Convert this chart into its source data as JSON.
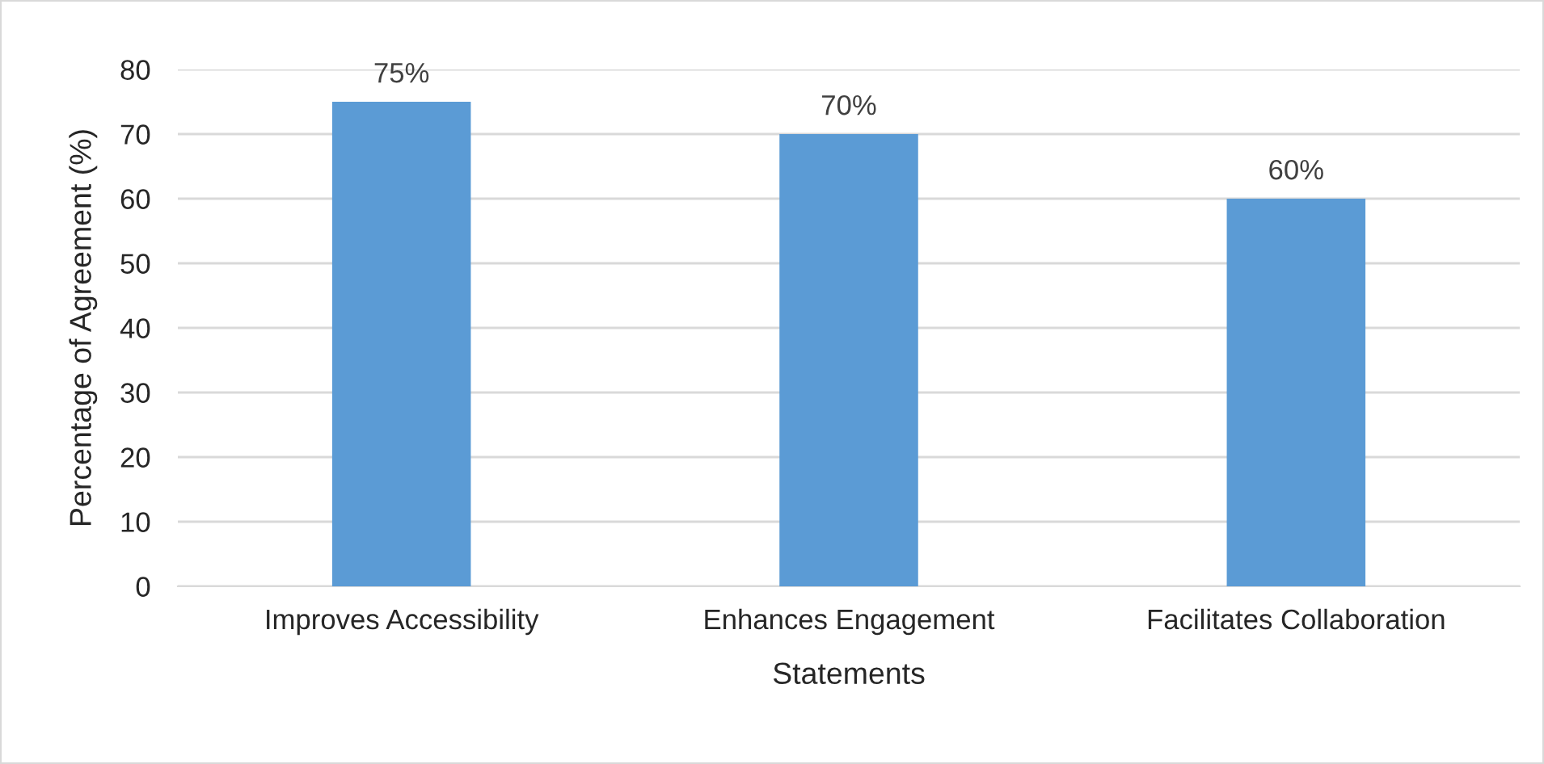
{
  "chart_data": {
    "type": "bar",
    "xlabel": "Statements",
    "ylabel": "Percentage of Agreement (%)",
    "categories": [
      "Improves Accessibility",
      "Enhances Engagement",
      "Facilitates Collaboration"
    ],
    "values": [
      75,
      70,
      60
    ],
    "value_labels": [
      "75%",
      "70%",
      "60%"
    ],
    "color": "#5b9bd5",
    "ylim": [
      0,
      80
    ],
    "yticks": [
      0,
      10,
      20,
      30,
      40,
      50,
      60,
      70,
      80
    ],
    "grid": "y"
  }
}
